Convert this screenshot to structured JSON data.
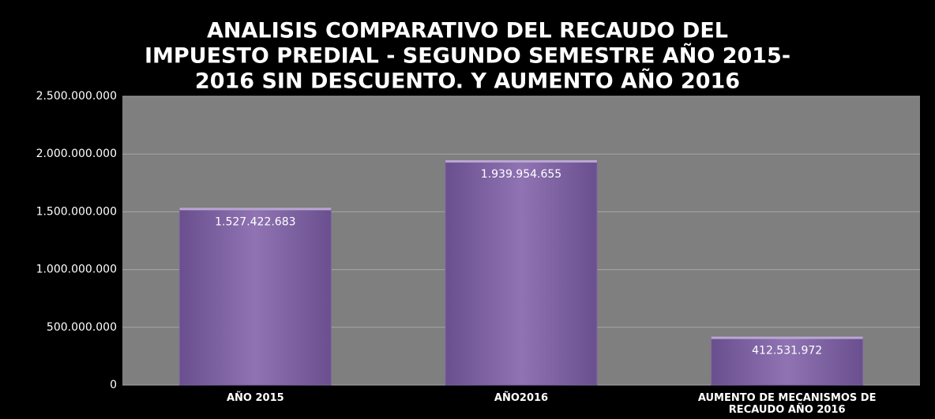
{
  "chart_data": {
    "type": "bar",
    "title": [
      "ANALISIS COMPARATIVO DEL  RECAUDO DEL",
      "IMPUESTO PREDIAL - SEGUNDO SEMESTRE AÑO 2015-",
      "2016  SIN DESCUENTO. Y AUMENTO  AÑO 2016"
    ],
    "categories": [
      "AÑO 2015",
      "AÑO2016",
      "AUMENTO DE MECANISMOS DE RECAUDO  AÑO 2016"
    ],
    "values": [
      1527422683,
      1939954655,
      412531972
    ],
    "value_labels": [
      "1.527.422.683",
      "1.939.954.655",
      "412.531.972"
    ],
    "color": "#8064a2",
    "ylim": [
      0,
      2500000000
    ],
    "yticks": [
      0,
      {
        "value": 500000000,
        "label": "500.000.000"
      },
      {
        "value": 1000000000,
        "label": "1.000.000.000"
      },
      {
        "value": 1500000000,
        "label": "1.500.000.000"
      },
      {
        "value": 2000000000,
        "label": "2.000.000.000"
      },
      {
        "value": 2500000000,
        "label": "2.500.000.000"
      }
    ],
    "grid": true
  }
}
